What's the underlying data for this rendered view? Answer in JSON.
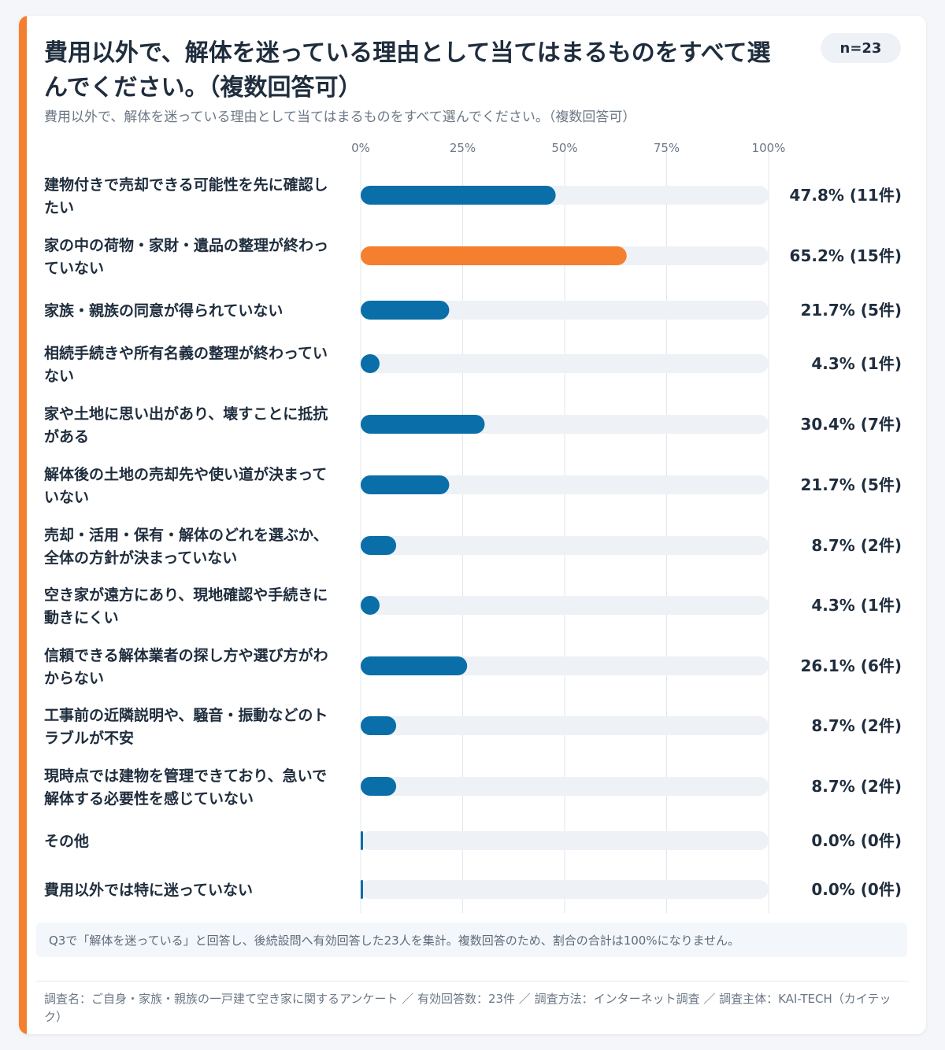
{
  "title": "費用以外で、解体を迷っている理由として当てはまるものをすべて選んでください。（複数回答可）",
  "badge": "n=23",
  "subtitle": "費用以外で、解体を迷っている理由として当てはまるものをすべて選んでください。（複数回答可）",
  "note": "Q3で「解体を迷っている」と回答し、後続設問へ有効回答した23人を集計。複数回答のため、割合の合計は100%になりません。",
  "footer": "調査名：ご自身・家族・親族の一戸建て空き家に関するアンケート ／ 有効回答数：23件 ／ 調査方法：インターネット調査 ／ 調査主体：KAI-TECH（カイテック）",
  "colors": {
    "accent": "#f47f2f",
    "bar": "#0a6ea8",
    "highlight": "#f47f2f",
    "track": "#eef1f5",
    "grid": "#e3e7ec"
  },
  "chart_data": {
    "type": "bar",
    "orientation": "horizontal",
    "xlim": [
      0,
      100
    ],
    "ticks": [
      "0%",
      "25%",
      "50%",
      "75%",
      "100%"
    ],
    "tick_values": [
      0,
      25,
      50,
      75,
      100
    ],
    "grid": true,
    "highlight_index": 1,
    "categories": [
      {
        "lines": [
          "建物付きで売却できる可能性を先に確認し",
          "たい"
        ],
        "value": 47.8,
        "label": "47.8% (11件)"
      },
      {
        "lines": [
          "家の中の荷物・家財・遺品の整理が終わっ",
          "ていない"
        ],
        "value": 65.2,
        "label": "65.2% (15件)"
      },
      {
        "lines": [
          "家族・親族の同意が得られていない"
        ],
        "value": 21.7,
        "label": "21.7% (5件)"
      },
      {
        "lines": [
          "相続手続きや所有名義の整理が終わってい",
          "ない"
        ],
        "value": 4.3,
        "label": "4.3% (1件)"
      },
      {
        "lines": [
          "家や土地に思い出があり、壊すことに抵抗",
          "がある"
        ],
        "value": 30.4,
        "label": "30.4% (7件)"
      },
      {
        "lines": [
          "解体後の土地の売却先や使い道が決まって",
          "いない"
        ],
        "value": 21.7,
        "label": "21.7% (5件)"
      },
      {
        "lines": [
          "売却・活用・保有・解体のどれを選ぶか、",
          "全体の方針が決まっていない"
        ],
        "value": 8.7,
        "label": "8.7% (2件)"
      },
      {
        "lines": [
          "空き家が遠方にあり、現地確認や手続きに",
          "動きにくい"
        ],
        "value": 4.3,
        "label": "4.3% (1件)"
      },
      {
        "lines": [
          "信頼できる解体業者の探し方や選び方がわ",
          "からない"
        ],
        "value": 26.1,
        "label": "26.1% (6件)"
      },
      {
        "lines": [
          "工事前の近隣説明や、騒音・振動などのト",
          "ラブルが不安"
        ],
        "value": 8.7,
        "label": "8.7% (2件)"
      },
      {
        "lines": [
          "現時点では建物を管理できており、急いで",
          "解体する必要性を感じていない"
        ],
        "value": 8.7,
        "label": "8.7% (2件)"
      },
      {
        "lines": [
          "その他"
        ],
        "value": 0.0,
        "label": "0.0% (0件)"
      },
      {
        "lines": [
          "費用以外では特に迷っていない"
        ],
        "value": 0.0,
        "label": "0.0% (0件)"
      }
    ]
  }
}
